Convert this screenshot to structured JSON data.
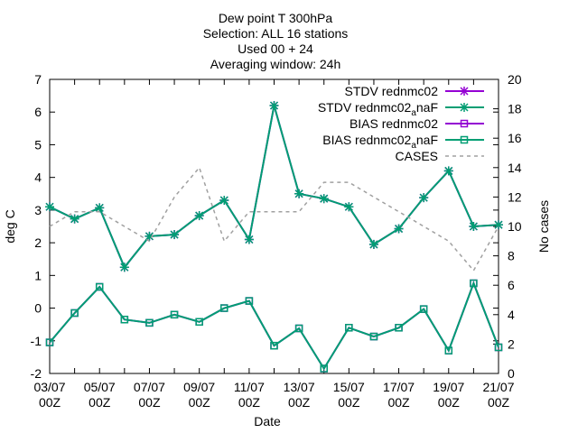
{
  "title_lines": [
    "Dew point T  300hPa",
    "Selection: ALL      16 stations",
    "Used 00 + 24",
    "Averaging window: 24h"
  ],
  "chart_data": {
    "type": "line",
    "xlabel": "Date",
    "ylabel_left": "deg C",
    "ylabel_right": "No cases",
    "ylim_left": [
      -2,
      7
    ],
    "ylim_right": [
      0,
      20
    ],
    "yticks_left": [
      "-2",
      "-1",
      "0",
      "1",
      "2",
      "3",
      "4",
      "5",
      "6",
      "7"
    ],
    "yticks_right": [
      "0",
      "2",
      "4",
      "6",
      "8",
      "10",
      "12",
      "14",
      "16",
      "18",
      "20"
    ],
    "xtick_labels": [
      {
        "date": "03/07",
        "hour": "00Z"
      },
      {
        "date": "05/07",
        "hour": "00Z"
      },
      {
        "date": "07/07",
        "hour": "00Z"
      },
      {
        "date": "09/07",
        "hour": "00Z"
      },
      {
        "date": "11/07",
        "hour": "00Z"
      },
      {
        "date": "13/07",
        "hour": "00Z"
      },
      {
        "date": "15/07",
        "hour": "00Z"
      },
      {
        "date": "17/07",
        "hour": "00Z"
      },
      {
        "date": "19/07",
        "hour": "00Z"
      },
      {
        "date": "21/07",
        "hour": "00Z"
      }
    ],
    "x": [
      "03/07",
      "04/07",
      "05/07",
      "06/07",
      "07/07",
      "08/07",
      "09/07",
      "10/07",
      "11/07",
      "12/07",
      "13/07",
      "14/07",
      "15/07",
      "16/07",
      "17/07",
      "18/07",
      "19/07",
      "20/07",
      "21/07"
    ],
    "legend": {
      "placement": "top-right",
      "entries": [
        {
          "label": "STDV rednmc02",
          "sub": ""
        },
        {
          "label": "STDV rednmc02",
          "sub": "a",
          "after": "naF"
        },
        {
          "label": "BIAS rednmc02",
          "sub": ""
        },
        {
          "label": "BIAS rednmc02",
          "sub": "a",
          "after": "naF"
        },
        {
          "label": "CASES",
          "sub": ""
        }
      ]
    },
    "series": [
      {
        "key": "stdv_ref",
        "axis": "left",
        "color": "#9400d3",
        "marker": "star",
        "values": [
          3.1,
          2.73,
          3.07,
          1.25,
          2.2,
          2.25,
          2.83,
          3.3,
          2.1,
          6.2,
          3.5,
          3.35,
          3.1,
          1.95,
          2.43,
          3.38,
          4.2,
          2.5,
          2.55
        ]
      },
      {
        "key": "stdv_exp",
        "axis": "left",
        "color": "#009e73",
        "marker": "star",
        "values": [
          3.1,
          2.73,
          3.07,
          1.25,
          2.2,
          2.25,
          2.83,
          3.3,
          2.1,
          6.2,
          3.5,
          3.35,
          3.1,
          1.95,
          2.43,
          3.38,
          4.2,
          2.5,
          2.55
        ]
      },
      {
        "key": "bias_ref",
        "axis": "left",
        "color": "#9400d3",
        "marker": "square",
        "values": [
          -1.05,
          -0.15,
          0.65,
          -0.35,
          -0.45,
          -0.2,
          -0.42,
          0.0,
          0.22,
          -1.15,
          -0.62,
          -1.85,
          -0.6,
          -0.87,
          -0.6,
          -0.03,
          -1.3,
          0.76,
          -1.2
        ]
      },
      {
        "key": "bias_exp",
        "axis": "left",
        "color": "#009e73",
        "marker": "square",
        "values": [
          -1.05,
          -0.15,
          0.65,
          -0.35,
          -0.45,
          -0.2,
          -0.42,
          0.0,
          0.22,
          -1.15,
          -0.62,
          -1.85,
          -0.6,
          -0.87,
          -0.6,
          -0.03,
          -1.3,
          0.76,
          -1.2
        ]
      },
      {
        "key": "cases",
        "axis": "right",
        "color": "#a0a0a0",
        "marker": "none",
        "dashed": true,
        "values": [
          10,
          11,
          11,
          10,
          9,
          12,
          14,
          9,
          11,
          11,
          11,
          13,
          13,
          12,
          11,
          10,
          9,
          7,
          10
        ]
      }
    ]
  }
}
